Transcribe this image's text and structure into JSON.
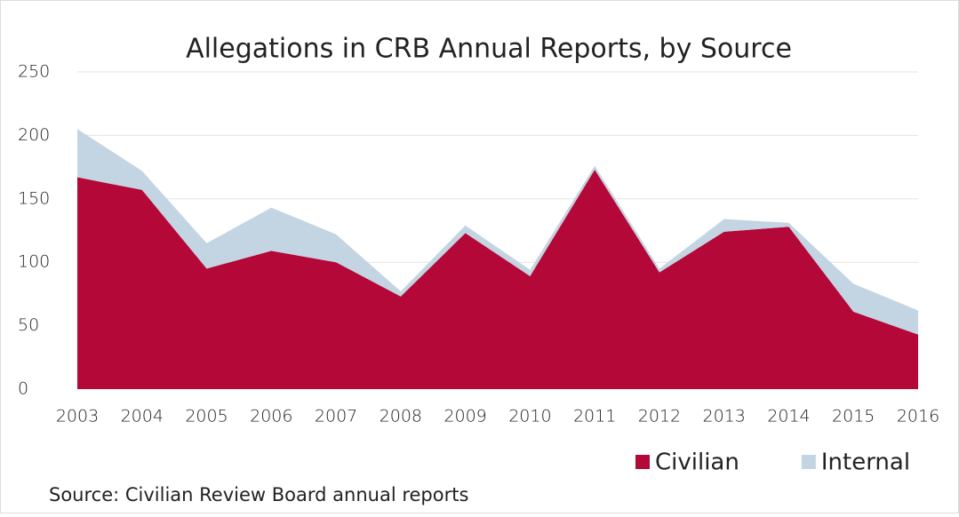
{
  "chart_data": {
    "type": "area",
    "stacked": true,
    "title": "Allegations in CRB Annual Reports, by Source",
    "source": "Source: Civilian Review Board annual reports",
    "categories": [
      "2003",
      "2004",
      "2005",
      "2006",
      "2007",
      "2008",
      "2009",
      "2010",
      "2011",
      "2012",
      "2013",
      "2014",
      "2015",
      "2016"
    ],
    "series": [
      {
        "name": "Civilian",
        "color": "#b30838",
        "values": [
          167,
          157,
          95,
          109,
          100,
          73,
          123,
          89,
          173,
          92,
          124,
          128,
          61,
          43
        ]
      },
      {
        "name": "Internal",
        "color": "#c3d4e2",
        "values": [
          38,
          15,
          20,
          34,
          22,
          4,
          6,
          5,
          3,
          3,
          10,
          3,
          22,
          19
        ]
      }
    ],
    "ylim": [
      0,
      250
    ],
    "yticks": [
      0,
      50,
      100,
      150,
      200,
      250
    ],
    "grid": true,
    "legend": "bottom-right"
  }
}
